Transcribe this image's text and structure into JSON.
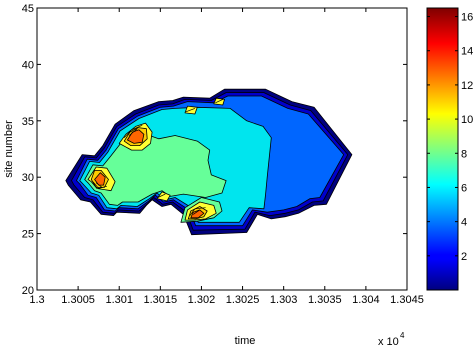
{
  "chart_data": {
    "type": "contourf",
    "title": "",
    "xlabel": "time",
    "ylabel": "site number",
    "x_exponent_label": "x 10",
    "x_exponent_value": "4",
    "xlim": [
      1.3,
      1.3045
    ],
    "ylim": [
      20,
      45
    ],
    "xticks": [
      1.3,
      1.3005,
      1.301,
      1.3015,
      1.302,
      1.3025,
      1.303,
      1.3035,
      1.304,
      1.3045
    ],
    "xtick_labels": [
      "1.3",
      "1.3005",
      "1.301",
      "1.3015",
      "1.302",
      "1.3025",
      "1.303",
      "1.3035",
      "1.304",
      "1.3045"
    ],
    "yticks": [
      20,
      25,
      30,
      35,
      40,
      45
    ],
    "ytick_labels": [
      "20",
      "25",
      "30",
      "35",
      "40",
      "45"
    ],
    "colormap": "jet",
    "colorbar": {
      "range": [
        0,
        16.5
      ],
      "ticks": [
        2,
        4,
        6,
        8,
        10,
        12,
        14,
        16
      ],
      "tick_labels": [
        "2",
        "4",
        "6",
        "8",
        "10",
        "12",
        "14",
        "16"
      ]
    },
    "grid": false,
    "regions": [
      {
        "level": 0.5,
        "color": "#00007f",
        "points": [
          [
            1.30035,
            29.7
          ],
          [
            1.30038,
            29.3
          ],
          [
            1.30053,
            28.0
          ],
          [
            1.30065,
            27.8
          ],
          [
            1.30078,
            26.7
          ],
          [
            1.30093,
            26.6
          ],
          [
            1.30097,
            26.9
          ],
          [
            1.30125,
            26.8
          ],
          [
            1.30133,
            27.5
          ],
          [
            1.3014,
            28.0
          ],
          [
            1.30152,
            27.4
          ],
          [
            1.30163,
            27.6
          ],
          [
            1.30178,
            26.7
          ],
          [
            1.30188,
            24.9
          ],
          [
            1.30255,
            25.1
          ],
          [
            1.30268,
            26.7
          ],
          [
            1.30285,
            26.3
          ],
          [
            1.30302,
            26.5
          ],
          [
            1.30318,
            26.8
          ],
          [
            1.30337,
            27.5
          ],
          [
            1.30352,
            27.6
          ],
          [
            1.30383,
            32.0
          ],
          [
            1.30337,
            36.2
          ],
          [
            1.3031,
            36.7
          ],
          [
            1.30278,
            37.8
          ],
          [
            1.30228,
            37.8
          ],
          [
            1.3021,
            37.0
          ],
          [
            1.30178,
            37.1
          ],
          [
            1.30165,
            36.8
          ],
          [
            1.30148,
            36.7
          ],
          [
            1.30118,
            35.9
          ],
          [
            1.30095,
            34.7
          ],
          [
            1.3008,
            32.8
          ],
          [
            1.3007,
            31.9
          ],
          [
            1.30055,
            32.0
          ]
        ]
      },
      {
        "level": 2,
        "color": "#0000cc",
        "points": [
          [
            1.30042,
            29.7
          ],
          [
            1.30045,
            29.3
          ],
          [
            1.30058,
            28.2
          ],
          [
            1.30068,
            28.0
          ],
          [
            1.3008,
            26.9
          ],
          [
            1.30094,
            26.8
          ],
          [
            1.30099,
            27.1
          ],
          [
            1.30124,
            27.0
          ],
          [
            1.30135,
            27.7
          ],
          [
            1.30142,
            28.2
          ],
          [
            1.30153,
            27.6
          ],
          [
            1.30165,
            27.8
          ],
          [
            1.30182,
            26.9
          ],
          [
            1.3019,
            25.3
          ],
          [
            1.30253,
            25.4
          ],
          [
            1.30265,
            26.9
          ],
          [
            1.30283,
            26.6
          ],
          [
            1.30302,
            26.8
          ],
          [
            1.30318,
            27.1
          ],
          [
            1.30335,
            27.8
          ],
          [
            1.30348,
            27.9
          ],
          [
            1.30378,
            32.0
          ],
          [
            1.30333,
            35.9
          ],
          [
            1.30308,
            36.4
          ],
          [
            1.30276,
            37.5
          ],
          [
            1.3023,
            37.5
          ],
          [
            1.30212,
            36.8
          ],
          [
            1.3018,
            36.9
          ],
          [
            1.30165,
            36.5
          ],
          [
            1.30148,
            36.4
          ],
          [
            1.3012,
            35.6
          ],
          [
            1.30097,
            34.5
          ],
          [
            1.30082,
            32.6
          ],
          [
            1.30072,
            31.7
          ],
          [
            1.30058,
            31.8
          ]
        ]
      },
      {
        "level": 4,
        "color": "#0066ff",
        "points": [
          [
            1.30048,
            29.7
          ],
          [
            1.30052,
            29.4
          ],
          [
            1.30062,
            28.4
          ],
          [
            1.30072,
            28.2
          ],
          [
            1.30082,
            27.1
          ],
          [
            1.30095,
            27.0
          ],
          [
            1.301,
            27.3
          ],
          [
            1.30123,
            27.2
          ],
          [
            1.30136,
            27.9
          ],
          [
            1.30144,
            28.4
          ],
          [
            1.30154,
            27.8
          ],
          [
            1.30166,
            28.0
          ],
          [
            1.30185,
            27.1
          ],
          [
            1.30193,
            25.7
          ],
          [
            1.3025,
            25.7
          ],
          [
            1.30262,
            27.1
          ],
          [
            1.3028,
            26.9
          ],
          [
            1.303,
            27.1
          ],
          [
            1.30316,
            27.4
          ],
          [
            1.30332,
            28.1
          ],
          [
            1.30344,
            28.2
          ],
          [
            1.30373,
            32.0
          ],
          [
            1.3033,
            35.6
          ],
          [
            1.30305,
            36.1
          ],
          [
            1.30273,
            37.2
          ],
          [
            1.30232,
            37.2
          ],
          [
            1.30215,
            36.6
          ],
          [
            1.30183,
            36.7
          ],
          [
            1.30166,
            36.3
          ],
          [
            1.3015,
            36.2
          ],
          [
            1.30122,
            35.4
          ],
          [
            1.30099,
            34.3
          ],
          [
            1.30084,
            32.4
          ],
          [
            1.30074,
            31.5
          ],
          [
            1.30061,
            31.6
          ]
        ]
      },
      {
        "level": 6,
        "color": "#00e5ee",
        "points": [
          [
            1.30052,
            29.7
          ],
          [
            1.30056,
            29.4
          ],
          [
            1.30066,
            28.6
          ],
          [
            1.30075,
            28.4
          ],
          [
            1.30085,
            27.3
          ],
          [
            1.30097,
            27.2
          ],
          [
            1.30102,
            27.5
          ],
          [
            1.30122,
            27.4
          ],
          [
            1.30137,
            28.1
          ],
          [
            1.30146,
            28.6
          ],
          [
            1.30156,
            28.0
          ],
          [
            1.30168,
            28.2
          ],
          [
            1.30188,
            27.3
          ],
          [
            1.30196,
            26.0
          ],
          [
            1.30246,
            26.0
          ],
          [
            1.30258,
            27.3
          ],
          [
            1.30276,
            27.2
          ],
          [
            1.30278,
            28.5
          ],
          [
            1.3028,
            30.0
          ],
          [
            1.30285,
            33.5
          ],
          [
            1.30275,
            34.5
          ],
          [
            1.30255,
            35.0
          ],
          [
            1.30235,
            36.1
          ],
          [
            1.30195,
            36.2
          ],
          [
            1.30168,
            36.1
          ],
          [
            1.30152,
            36.0
          ],
          [
            1.30124,
            35.2
          ],
          [
            1.30101,
            34.1
          ],
          [
            1.30086,
            32.2
          ],
          [
            1.30076,
            31.3
          ],
          [
            1.30064,
            31.4
          ]
        ]
      },
      {
        "level": 8,
        "color": "#66ff99",
        "points": [
          [
            1.30058,
            29.8
          ],
          [
            1.30062,
            29.5
          ],
          [
            1.3007,
            28.8
          ],
          [
            1.30078,
            28.6
          ],
          [
            1.30088,
            27.6
          ],
          [
            1.30098,
            27.5
          ],
          [
            1.30104,
            27.8
          ],
          [
            1.30123,
            27.8
          ],
          [
            1.3014,
            28.5
          ],
          [
            1.30152,
            28.8
          ],
          [
            1.30162,
            28.3
          ],
          [
            1.30178,
            28.5
          ],
          [
            1.30205,
            28.2
          ],
          [
            1.30225,
            28.6
          ],
          [
            1.3023,
            29.7
          ],
          [
            1.30212,
            30.2
          ],
          [
            1.30208,
            31.5
          ],
          [
            1.3021,
            32.4
          ],
          [
            1.30195,
            33.2
          ],
          [
            1.30168,
            33.7
          ],
          [
            1.30148,
            33.4
          ],
          [
            1.30125,
            34.0
          ],
          [
            1.30105,
            33.3
          ],
          [
            1.3009,
            31.9
          ],
          [
            1.3008,
            31.0
          ],
          [
            1.30068,
            31.1
          ]
        ]
      },
      {
        "level": 8,
        "color": "#66ff99",
        "points": [
          [
            1.30175,
            26.0
          ],
          [
            1.3018,
            27.3
          ],
          [
            1.302,
            28.2
          ],
          [
            1.30222,
            27.8
          ],
          [
            1.30225,
            27.0
          ],
          [
            1.30215,
            26.4
          ],
          [
            1.30195,
            26.1
          ]
        ]
      },
      {
        "level": 10,
        "color": "#ffff33",
        "points": [
          [
            1.30062,
            29.8
          ],
          [
            1.30066,
            29.6
          ],
          [
            1.30073,
            29.0
          ],
          [
            1.30082,
            28.9
          ],
          [
            1.3009,
            28.8
          ],
          [
            1.30095,
            29.6
          ],
          [
            1.30085,
            30.8
          ],
          [
            1.30072,
            30.9
          ]
        ]
      },
      {
        "level": 10,
        "color": "#ffff33",
        "points": [
          [
            1.301,
            33.0
          ],
          [
            1.30108,
            33.8
          ],
          [
            1.3012,
            34.5
          ],
          [
            1.30132,
            34.8
          ],
          [
            1.3014,
            34.0
          ],
          [
            1.30138,
            33.0
          ],
          [
            1.30128,
            32.4
          ],
          [
            1.30115,
            32.4
          ]
        ]
      },
      {
        "level": 10,
        "color": "#ffff33",
        "points": [
          [
            1.3018,
            26.2
          ],
          [
            1.30183,
            27.1
          ],
          [
            1.30198,
            27.8
          ],
          [
            1.30215,
            27.5
          ],
          [
            1.30218,
            26.8
          ],
          [
            1.30205,
            26.3
          ],
          [
            1.3019,
            26.2
          ]
        ]
      },
      {
        "level": 10,
        "color": "#ffff33",
        "points": [
          [
            1.30146,
            28.1
          ],
          [
            1.30152,
            28.7
          ],
          [
            1.30162,
            28.4
          ],
          [
            1.30158,
            27.9
          ]
        ]
      },
      {
        "level": 10,
        "color": "#ffff33",
        "points": [
          [
            1.3018,
            35.7
          ],
          [
            1.30183,
            36.3
          ],
          [
            1.30195,
            36.2
          ],
          [
            1.30192,
            35.6
          ]
        ]
      },
      {
        "level": 10,
        "color": "#ffff33",
        "points": [
          [
            1.30215,
            36.5
          ],
          [
            1.30218,
            37.0
          ],
          [
            1.30228,
            36.9
          ],
          [
            1.30226,
            36.4
          ]
        ]
      },
      {
        "level": 12,
        "color": "#ffcc00",
        "points": [
          [
            1.30066,
            29.8
          ],
          [
            1.30072,
            29.1
          ],
          [
            1.30082,
            29.1
          ],
          [
            1.30087,
            29.8
          ],
          [
            1.30078,
            30.6
          ],
          [
            1.3007,
            30.6
          ]
        ]
      },
      {
        "level": 12,
        "color": "#ffcc00",
        "points": [
          [
            1.30106,
            33.2
          ],
          [
            1.30113,
            34.0
          ],
          [
            1.30123,
            34.4
          ],
          [
            1.30133,
            34.3
          ],
          [
            1.30134,
            33.4
          ],
          [
            1.30125,
            32.8
          ],
          [
            1.30114,
            32.8
          ]
        ]
      },
      {
        "level": 12,
        "color": "#ffcc00",
        "points": [
          [
            1.30184,
            26.3
          ],
          [
            1.30187,
            27.0
          ],
          [
            1.30198,
            27.4
          ],
          [
            1.30207,
            27.0
          ],
          [
            1.30203,
            26.5
          ],
          [
            1.30193,
            26.3
          ]
        ]
      },
      {
        "level": 14,
        "color": "#ff6600",
        "points": [
          [
            1.3007,
            29.8
          ],
          [
            1.30075,
            29.3
          ],
          [
            1.30081,
            29.3
          ],
          [
            1.30083,
            30.0
          ],
          [
            1.30077,
            30.4
          ]
        ]
      },
      {
        "level": 14,
        "color": "#ff6600",
        "points": [
          [
            1.3011,
            33.3
          ],
          [
            1.30116,
            34.0
          ],
          [
            1.30124,
            34.2
          ],
          [
            1.3013,
            33.8
          ],
          [
            1.30128,
            33.1
          ],
          [
            1.30118,
            33.0
          ]
        ]
      },
      {
        "level": 14,
        "color": "#ff6600",
        "points": [
          [
            1.30187,
            26.4
          ],
          [
            1.3019,
            26.9
          ],
          [
            1.30198,
            27.1
          ],
          [
            1.30203,
            26.8
          ],
          [
            1.30196,
            26.4
          ]
        ]
      }
    ],
    "contour_lines": [
      [
        [
          1.30068,
          29.6
        ],
        [
          1.30075,
          29.0
        ],
        [
          1.30085,
          29.2
        ]
      ],
      [
        [
          1.30072,
          29.5
        ],
        [
          1.30079,
          29.1
        ]
      ],
      [
        [
          1.30106,
          33.5
        ],
        [
          1.30115,
          34.2
        ],
        [
          1.30128,
          34.6
        ]
      ],
      [
        [
          1.30112,
          33.7
        ],
        [
          1.30122,
          34.3
        ]
      ],
      [
        [
          1.30186,
          26.6
        ],
        [
          1.30192,
          27.2
        ],
        [
          1.30205,
          27.3
        ]
      ],
      [
        [
          1.3019,
          26.7
        ],
        [
          1.30198,
          27.1
        ]
      ],
      [
        [
          1.30181,
          35.8
        ],
        [
          1.30192,
          36.1
        ]
      ],
      [
        [
          1.30217,
          36.6
        ],
        [
          1.30226,
          36.9
        ]
      ],
      [
        [
          1.30147,
          28.2
        ],
        [
          1.30156,
          28.5
        ]
      ]
    ]
  }
}
